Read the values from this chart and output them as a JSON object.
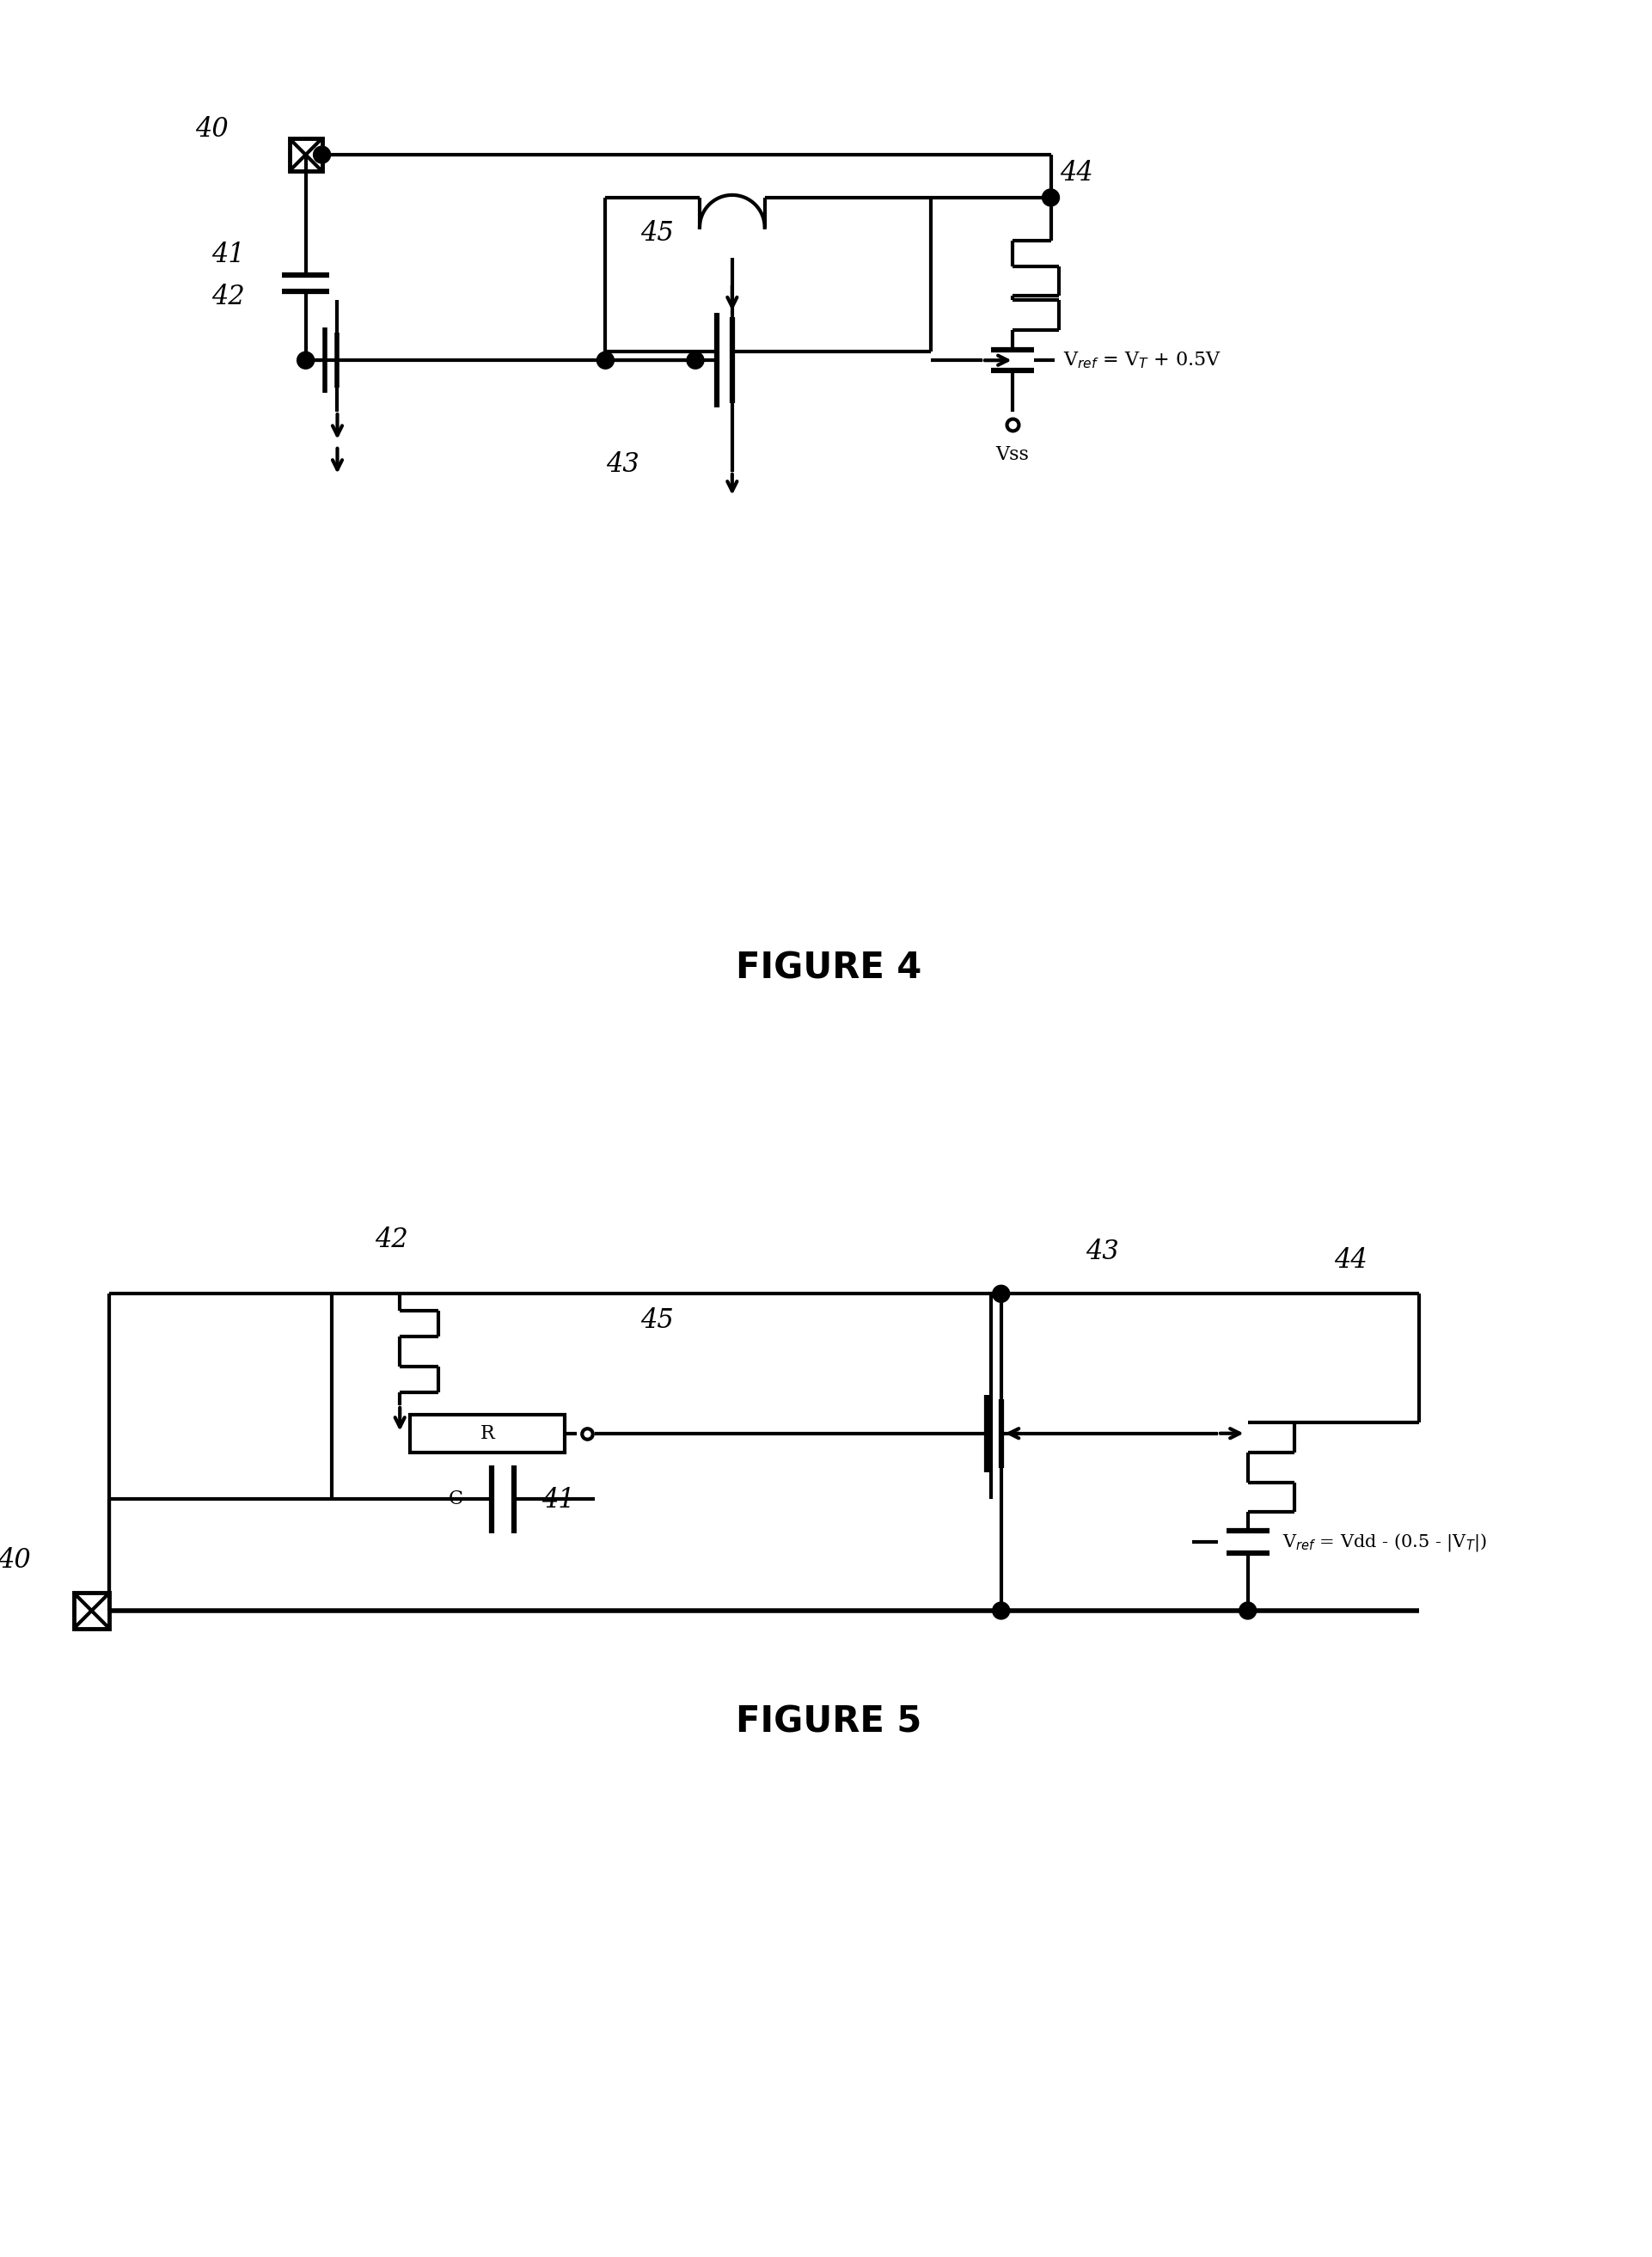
{
  "fig_width": 19.22,
  "fig_height": 26.26,
  "bg_color": "#ffffff",
  "lw": 3.0,
  "fig4_title": "FIGURE 4",
  "fig5_title": "FIGURE 5",
  "fig4_vref": "V$_{ref}$ = V$_T$ + 0.5V",
  "fig4_vss": "Vss",
  "fig5_vref": "V$_{ref}$ = Vdd - (0.5 - |V$_T$|)"
}
